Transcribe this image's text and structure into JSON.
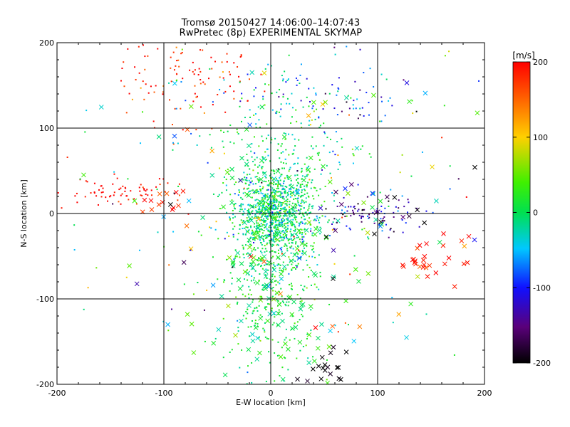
{
  "chart_data": {
    "type": "scatter",
    "title": "Tromsø 20150427 14:06:00–14:07:43",
    "subtitle": "RwPretec (8p) EXPERIMENTAL SKYMAP",
    "xlabel": "E-W location [km]",
    "ylabel": "N-S location [km]",
    "xlim": [
      -200,
      200
    ],
    "ylim": [
      -200,
      200
    ],
    "x_ticks": [
      "-200",
      "-100",
      "0",
      "100",
      "200"
    ],
    "y_ticks": [
      "-200",
      "-100",
      "0",
      "100",
      "200"
    ],
    "grid": true,
    "colorbar": {
      "label": "[m/s]",
      "range": [
        -200,
        200
      ],
      "ticks": [
        "200",
        "100",
        "0",
        "-100",
        "-200"
      ],
      "colormap": "rainbow (black-purple-blue-cyan-green-yellow-red)"
    },
    "markers": [
      "dot",
      "x"
    ],
    "clusters": [
      {
        "region": "north-west",
        "x_center": -80,
        "y_center": 160,
        "x_spread": 35,
        "y_spread": 30,
        "velocity": 185,
        "velocity_spread": 30,
        "n": 110,
        "marker": "dot"
      },
      {
        "region": "north-center",
        "x_center": 20,
        "y_center": 140,
        "x_spread": 50,
        "y_spread": 20,
        "velocity": -50,
        "velocity_spread": 50,
        "n": 70,
        "marker": "dot"
      },
      {
        "region": "north-east",
        "x_center": 80,
        "y_center": 130,
        "x_spread": 25,
        "y_spread": 15,
        "velocity": -100,
        "velocity_spread": 40,
        "n": 30,
        "marker": "dot"
      },
      {
        "region": "west arc",
        "x_center": -140,
        "y_center": 25,
        "x_spread": 28,
        "y_spread": 10,
        "velocity": 195,
        "velocity_spread": 20,
        "n": 70,
        "marker": "dot"
      },
      {
        "region": "west arc crosses",
        "x_center": -100,
        "y_center": 12,
        "x_spread": 12,
        "y_spread": 10,
        "velocity": 180,
        "velocity_spread": 40,
        "n": 14,
        "marker": "x"
      },
      {
        "region": "central core",
        "x_center": 5,
        "y_center": 0,
        "x_spread": 18,
        "y_spread": 25,
        "velocity": -10,
        "velocity_spread": 35,
        "n": 900,
        "marker": "dot"
      },
      {
        "region": "central column",
        "x_center": 0,
        "y_center": -70,
        "x_spread": 22,
        "y_spread": 60,
        "velocity": 10,
        "velocity_spread": 20,
        "n": 400,
        "marker": "dot"
      },
      {
        "region": "central column crosses",
        "x_center": 5,
        "y_center": -60,
        "x_spread": 30,
        "y_spread": 75,
        "velocity": 10,
        "velocity_spread": 25,
        "n": 160,
        "marker": "x"
      },
      {
        "region": "north column",
        "x_center": 15,
        "y_center": 70,
        "x_spread": 30,
        "y_spread": 40,
        "velocity": 0,
        "velocity_spread": 30,
        "n": 180,
        "marker": "dot"
      },
      {
        "region": "east band",
        "x_center": 95,
        "y_center": -3,
        "x_spread": 25,
        "y_spread": 10,
        "velocity": -130,
        "velocity_spread": 50,
        "n": 90,
        "marker": "dot"
      },
      {
        "region": "east band crosses",
        "x_center": 95,
        "y_center": -5,
        "x_spread": 30,
        "y_spread": 15,
        "velocity": -130,
        "velocity_spread": 60,
        "n": 24,
        "marker": "x"
      },
      {
        "region": "south-east",
        "x_center": 150,
        "y_center": -52,
        "x_spread": 15,
        "y_spread": 12,
        "velocity": 190,
        "velocity_spread": 20,
        "n": 28,
        "marker": "x"
      },
      {
        "region": "south",
        "x_center": 52,
        "y_center": -180,
        "x_spread": 15,
        "y_spread": 10,
        "velocity": -200,
        "velocity_spread": 10,
        "n": 18,
        "marker": "x"
      },
      {
        "region": "sparse scatter",
        "x_center": 0,
        "y_center": 0,
        "x_spread": 110,
        "y_spread": 110,
        "velocity": 0,
        "velocity_spread": 90,
        "n": 260,
        "marker": "mixed"
      }
    ]
  }
}
